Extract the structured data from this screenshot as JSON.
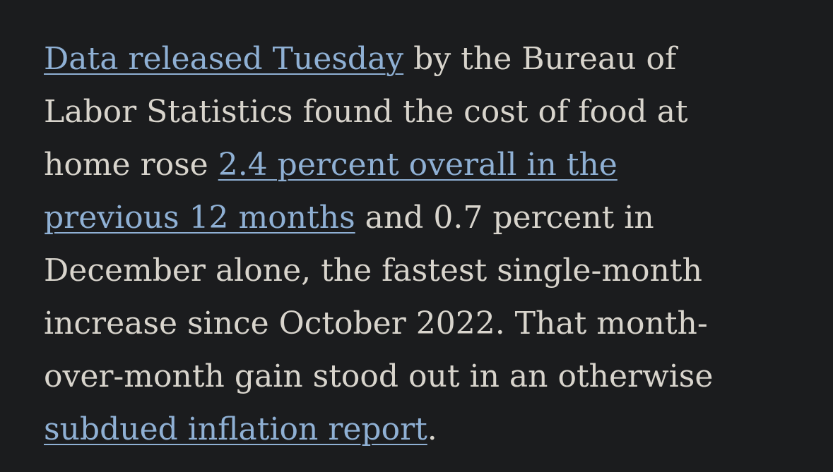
{
  "article": {
    "lines": [
      {
        "link": "Data released Tuesday",
        "text": " by the Bureau of"
      },
      {
        "text": "Labor Statistics found the cost of food at"
      },
      {
        "text": "home rose ",
        "link": "2.4 percent overall in the"
      },
      {
        "link": "previous 12 months",
        "text": " and 0.7 percent in"
      },
      {
        "text": "December alone, the fastest single-month"
      },
      {
        "text": "increase since October 2022. That month-"
      },
      {
        "text": "over-month gain stood out in an otherwise"
      },
      {
        "link": "subdued inflation report",
        "text": "."
      }
    ]
  },
  "colors": {
    "background": "#1b1c1e",
    "body_text": "#d8d4cc",
    "link": "#8fb0d4"
  }
}
